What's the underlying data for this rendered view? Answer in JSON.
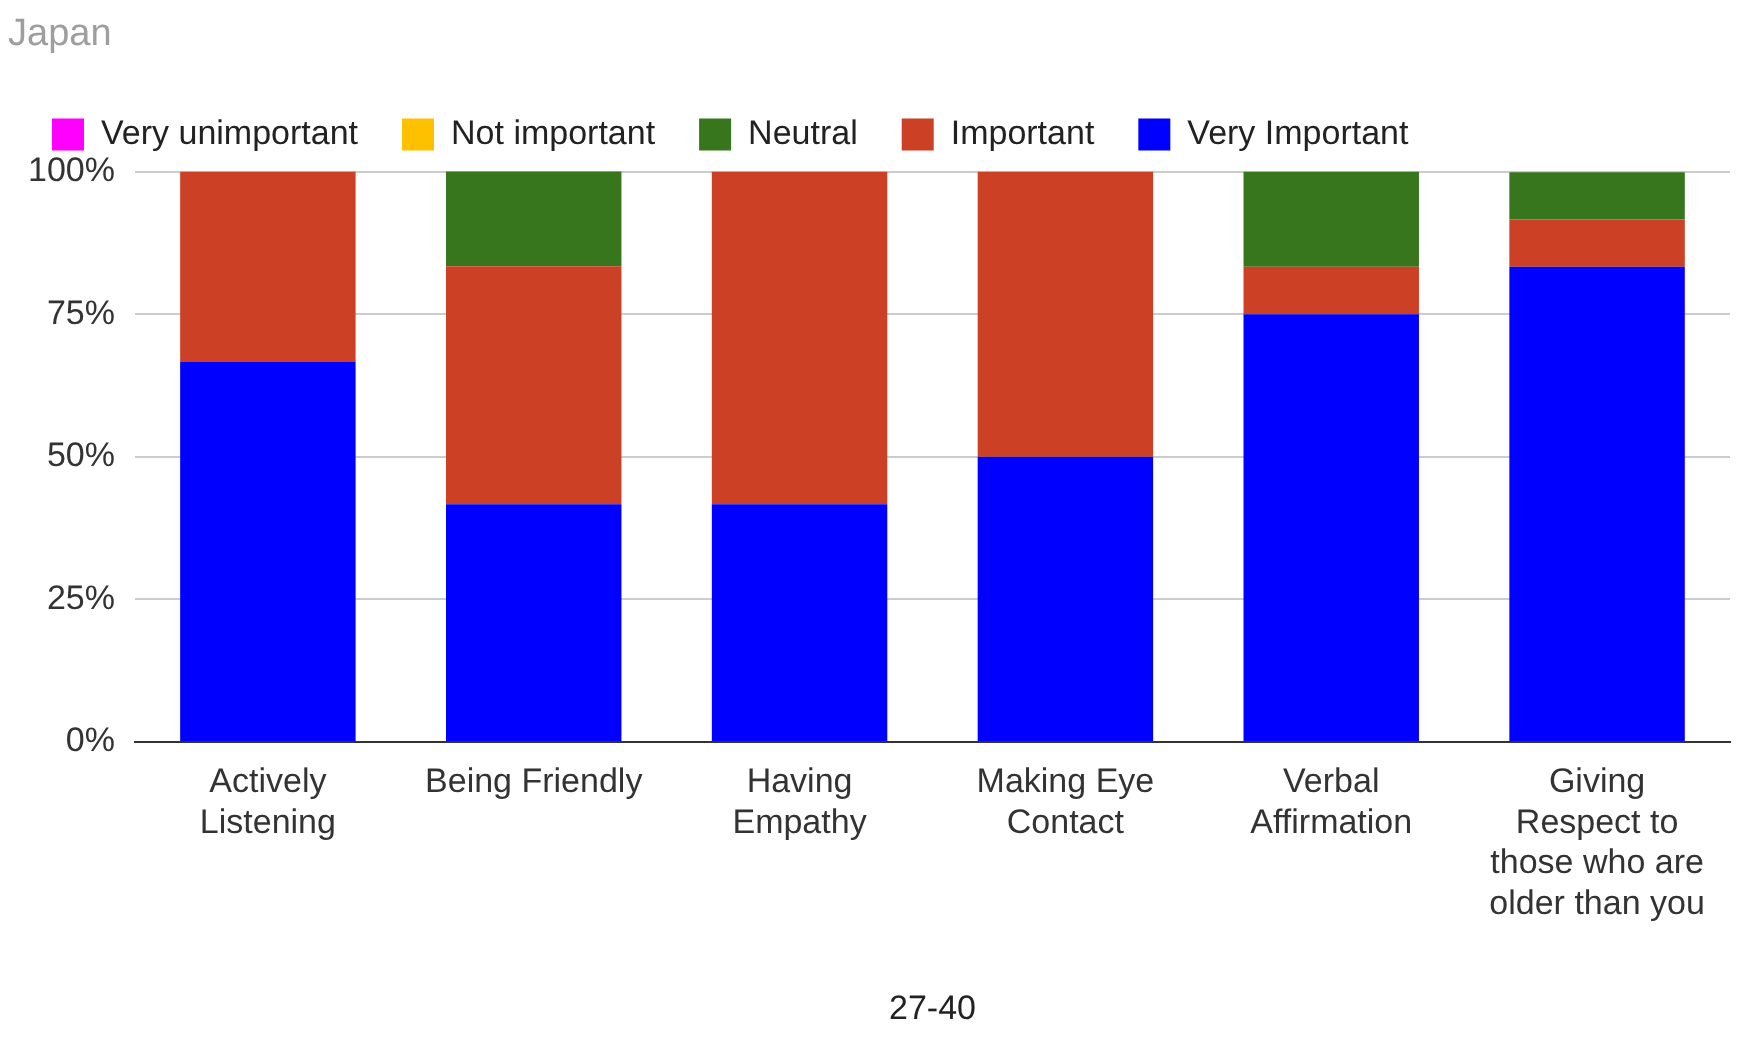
{
  "chart_data": {
    "type": "bar",
    "title": "Japan",
    "xlabel": "27-40",
    "stacked": true,
    "legend": "top",
    "grid": "y",
    "categories": [
      "Actively Listening",
      "Being Friendly",
      "Having Empathy",
      "Making Eye Contact",
      "Verbal Affirmation",
      "Giving Respect to those who are older than you"
    ],
    "ylim": [
      0,
      100
    ],
    "yticks": [
      {
        "value": 0,
        "label": "0%"
      },
      {
        "value": 25,
        "label": "25%"
      },
      {
        "value": 50,
        "label": "50%"
      },
      {
        "value": 75,
        "label": "75%"
      },
      {
        "value": 100,
        "label": "100%"
      }
    ],
    "series": [
      {
        "name": "Very Important",
        "color": "#0000ff",
        "values": [
          66.7,
          41.7,
          41.7,
          50,
          75,
          83.3
        ]
      },
      {
        "name": "Important",
        "color": "#cc4125",
        "values": [
          33.3,
          41.7,
          58.3,
          50,
          8.3,
          8.3
        ]
      },
      {
        "name": "Neutral",
        "color": "#38761d",
        "values": [
          0,
          16.7,
          0,
          0,
          16.7,
          8.3
        ]
      },
      {
        "name": "Not important",
        "color": "#ffc000",
        "values": [
          0,
          0,
          0,
          0,
          0,
          0
        ]
      },
      {
        "name": "Very unimportant",
        "color": "#ff00ff",
        "values": [
          0,
          0,
          0,
          0,
          0,
          0
        ]
      }
    ]
  }
}
